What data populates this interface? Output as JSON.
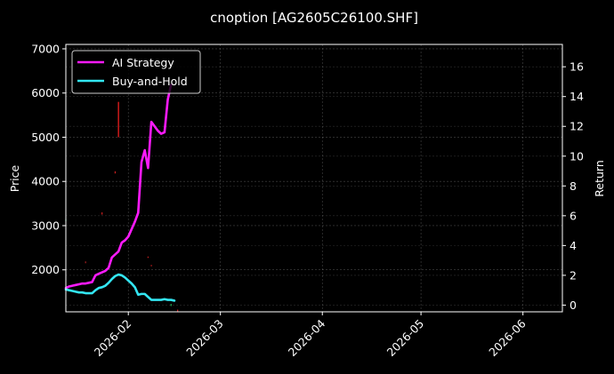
{
  "chart_data": {
    "type": "line",
    "title": "cnoption [AG2605C26100.SHF]",
    "xlabel": "",
    "ylabel_left": "Price",
    "ylabel_right": "Return",
    "grid": true,
    "legend_placement": "top-left",
    "background": "#000000",
    "x_axis": {
      "type": "date",
      "range": [
        "2026-01-13",
        "2026-06-13"
      ],
      "ticks": [
        "2026-02",
        "2026-03",
        "2026-04",
        "2026-05",
        "2026-06"
      ]
    },
    "y_left": {
      "range": [
        1050,
        7100
      ],
      "ticks": [
        2000,
        3000,
        4000,
        5000,
        6000,
        7000
      ]
    },
    "y_right": {
      "range": [
        -0.45,
        17.5
      ],
      "ticks": [
        0,
        2,
        4,
        6,
        8,
        10,
        12,
        14,
        16
      ]
    },
    "series": [
      {
        "name": "AI Strategy",
        "axis": "right",
        "color": "#ff1aff",
        "points": [
          [
            "2026-01-13",
            1.15
          ],
          [
            "2026-01-14",
            1.25
          ],
          [
            "2026-01-15",
            1.3
          ],
          [
            "2026-01-16",
            1.35
          ],
          [
            "2026-01-17",
            1.4
          ],
          [
            "2026-01-18",
            1.45
          ],
          [
            "2026-01-19",
            1.45
          ],
          [
            "2026-01-20",
            1.5
          ],
          [
            "2026-01-21",
            1.55
          ],
          [
            "2026-01-22",
            2.0
          ],
          [
            "2026-01-23",
            2.1
          ],
          [
            "2026-01-24",
            2.2
          ],
          [
            "2026-01-25",
            2.3
          ],
          [
            "2026-01-26",
            2.5
          ],
          [
            "2026-01-27",
            3.2
          ],
          [
            "2026-01-28",
            3.4
          ],
          [
            "2026-01-29",
            3.6
          ],
          [
            "2026-01-30",
            4.2
          ],
          [
            "2026-01-31",
            4.35
          ],
          [
            "2026-02-01",
            4.6
          ],
          [
            "2026-02-02",
            5.1
          ],
          [
            "2026-02-03",
            5.6
          ],
          [
            "2026-02-04",
            6.2
          ],
          [
            "2026-02-05",
            9.6
          ],
          [
            "2026-02-06",
            10.4
          ],
          [
            "2026-02-07",
            9.2
          ],
          [
            "2026-02-08",
            12.3
          ],
          [
            "2026-02-09",
            12.0
          ],
          [
            "2026-02-10",
            11.7
          ],
          [
            "2026-02-11",
            11.5
          ],
          [
            "2026-02-12",
            11.6
          ],
          [
            "2026-02-13",
            13.8
          ],
          [
            "2026-02-14",
            14.8
          ]
        ]
      },
      {
        "name": "Buy-and-Hold",
        "axis": "right",
        "color": "#33e6f2",
        "points": [
          [
            "2026-01-13",
            1.05
          ],
          [
            "2026-01-14",
            1.0
          ],
          [
            "2026-01-15",
            0.95
          ],
          [
            "2026-01-16",
            0.9
          ],
          [
            "2026-01-17",
            0.85
          ],
          [
            "2026-01-18",
            0.85
          ],
          [
            "2026-01-19",
            0.8
          ],
          [
            "2026-01-20",
            0.8
          ],
          [
            "2026-01-21",
            0.8
          ],
          [
            "2026-01-22",
            1.0
          ],
          [
            "2026-01-23",
            1.15
          ],
          [
            "2026-01-24",
            1.2
          ],
          [
            "2026-01-25",
            1.3
          ],
          [
            "2026-01-26",
            1.5
          ],
          [
            "2026-01-27",
            1.75
          ],
          [
            "2026-01-28",
            1.95
          ],
          [
            "2026-01-29",
            2.05
          ],
          [
            "2026-01-30",
            2.0
          ],
          [
            "2026-01-31",
            1.85
          ],
          [
            "2026-02-01",
            1.65
          ],
          [
            "2026-02-02",
            1.45
          ],
          [
            "2026-02-03",
            1.2
          ],
          [
            "2026-02-04",
            0.7
          ],
          [
            "2026-02-05",
            0.75
          ],
          [
            "2026-02-06",
            0.75
          ],
          [
            "2026-02-07",
            0.55
          ],
          [
            "2026-02-08",
            0.35
          ],
          [
            "2026-02-09",
            0.35
          ],
          [
            "2026-02-10",
            0.35
          ],
          [
            "2026-02-11",
            0.35
          ],
          [
            "2026-02-12",
            0.4
          ],
          [
            "2026-02-13",
            0.35
          ],
          [
            "2026-02-14",
            0.35
          ],
          [
            "2026-02-15",
            0.3
          ]
        ]
      }
    ],
    "price_marks": {
      "axis": "left",
      "bars": [
        {
          "date": "2026-01-29",
          "low": 5000,
          "high": 5800,
          "color": "#ff2020"
        },
        {
          "date": "2026-01-24",
          "low": 3250,
          "high": 3300,
          "color": "#cc2020"
        },
        {
          "date": "2026-01-28",
          "low": 4180,
          "high": 4230,
          "color": "#cc2020"
        },
        {
          "date": "2026-01-19",
          "low": 2150,
          "high": 2190,
          "color": "#aa2020"
        },
        {
          "date": "2026-02-07",
          "low": 2270,
          "high": 2300,
          "color": "#cc2020"
        },
        {
          "date": "2026-02-08",
          "low": 2080,
          "high": 2110,
          "color": "#cc2020"
        },
        {
          "date": "2026-02-14",
          "low": 1180,
          "high": 1230,
          "color": "#20aa55"
        },
        {
          "date": "2026-02-16",
          "low": 1060,
          "high": 1100,
          "color": "#cc2020"
        },
        {
          "date": "2026-01-13",
          "low": 3100,
          "high": 3150,
          "color": "#20aa55"
        }
      ]
    }
  }
}
